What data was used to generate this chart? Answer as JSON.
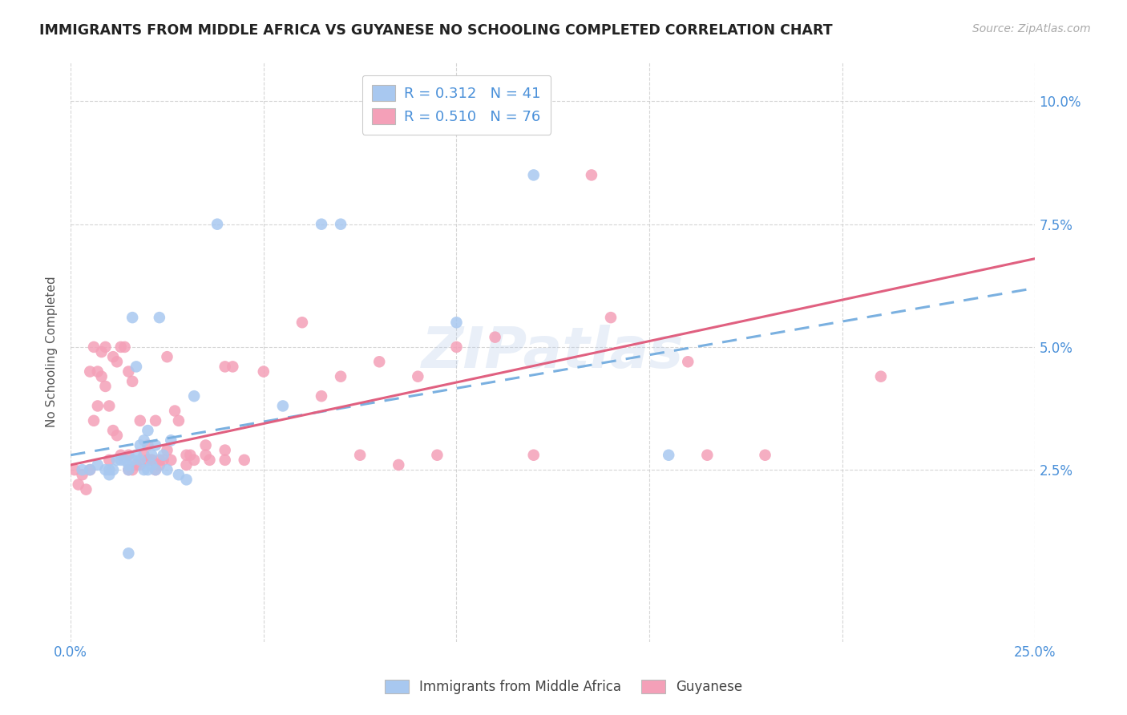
{
  "title": "IMMIGRANTS FROM MIDDLE AFRICA VS GUYANESE NO SCHOOLING COMPLETED CORRELATION CHART",
  "source": "Source: ZipAtlas.com",
  "ylabel": "No Schooling Completed",
  "xlim": [
    0.0,
    0.25
  ],
  "ylim": [
    -0.01,
    0.108
  ],
  "yticks": [
    0.025,
    0.05,
    0.075,
    0.1
  ],
  "yticklabels": [
    "2.5%",
    "5.0%",
    "7.5%",
    "10.0%"
  ],
  "xtick_positions": [
    0.0,
    0.05,
    0.1,
    0.15,
    0.2,
    0.25
  ],
  "xticklabels": [
    "0.0%",
    "",
    "",
    "",
    "",
    "25.0%"
  ],
  "legend1_r": "0.312",
  "legend1_n": "41",
  "legend2_r": "0.510",
  "legend2_n": "76",
  "color_blue": "#a8c8f0",
  "color_pink": "#f4a0b8",
  "color_blue_line": "#7ab0e0",
  "color_pink_line": "#e06080",
  "color_blue_text": "#4a90d9",
  "color_pink_text": "#e05878",
  "watermark": "ZIPatlas",
  "blue_line": [
    [
      0.0,
      0.25
    ],
    [
      0.028,
      0.062
    ]
  ],
  "pink_line": [
    [
      0.0,
      0.25
    ],
    [
      0.026,
      0.068
    ]
  ],
  "blue_scatter_x": [
    0.003,
    0.005,
    0.007,
    0.009,
    0.01,
    0.011,
    0.012,
    0.013,
    0.014,
    0.015,
    0.015,
    0.016,
    0.016,
    0.017,
    0.017,
    0.018,
    0.018,
    0.019,
    0.019,
    0.02,
    0.02,
    0.021,
    0.021,
    0.022,
    0.022,
    0.023,
    0.024,
    0.025,
    0.026,
    0.028,
    0.03,
    0.032,
    0.038,
    0.055,
    0.065,
    0.07,
    0.1,
    0.12,
    0.155,
    0.01,
    0.015
  ],
  "blue_scatter_y": [
    0.025,
    0.025,
    0.026,
    0.025,
    0.025,
    0.025,
    0.027,
    0.027,
    0.027,
    0.026,
    0.025,
    0.056,
    0.027,
    0.028,
    0.046,
    0.03,
    0.027,
    0.031,
    0.025,
    0.025,
    0.033,
    0.026,
    0.028,
    0.03,
    0.025,
    0.056,
    0.028,
    0.025,
    0.031,
    0.024,
    0.023,
    0.04,
    0.075,
    0.038,
    0.075,
    0.075,
    0.055,
    0.085,
    0.028,
    0.024,
    0.008
  ],
  "pink_scatter_x": [
    0.001,
    0.002,
    0.003,
    0.004,
    0.005,
    0.005,
    0.006,
    0.006,
    0.007,
    0.007,
    0.008,
    0.008,
    0.009,
    0.009,
    0.01,
    0.01,
    0.011,
    0.011,
    0.012,
    0.012,
    0.013,
    0.013,
    0.014,
    0.015,
    0.015,
    0.015,
    0.016,
    0.016,
    0.017,
    0.018,
    0.018,
    0.019,
    0.02,
    0.02,
    0.021,
    0.021,
    0.022,
    0.022,
    0.023,
    0.023,
    0.024,
    0.025,
    0.025,
    0.026,
    0.027,
    0.028,
    0.03,
    0.03,
    0.031,
    0.032,
    0.035,
    0.035,
    0.036,
    0.04,
    0.04,
    0.04,
    0.042,
    0.045,
    0.05,
    0.06,
    0.065,
    0.07,
    0.075,
    0.08,
    0.085,
    0.09,
    0.095,
    0.1,
    0.11,
    0.12,
    0.135,
    0.14,
    0.16,
    0.165,
    0.18,
    0.21
  ],
  "pink_scatter_y": [
    0.025,
    0.022,
    0.024,
    0.021,
    0.045,
    0.025,
    0.035,
    0.05,
    0.038,
    0.045,
    0.044,
    0.049,
    0.042,
    0.05,
    0.027,
    0.038,
    0.033,
    0.048,
    0.032,
    0.047,
    0.028,
    0.05,
    0.05,
    0.025,
    0.028,
    0.045,
    0.025,
    0.043,
    0.026,
    0.026,
    0.035,
    0.028,
    0.027,
    0.03,
    0.027,
    0.027,
    0.025,
    0.035,
    0.026,
    0.027,
    0.027,
    0.029,
    0.048,
    0.027,
    0.037,
    0.035,
    0.026,
    0.028,
    0.028,
    0.027,
    0.028,
    0.03,
    0.027,
    0.027,
    0.029,
    0.046,
    0.046,
    0.027,
    0.045,
    0.055,
    0.04,
    0.044,
    0.028,
    0.047,
    0.026,
    0.044,
    0.028,
    0.05,
    0.052,
    0.028,
    0.085,
    0.056,
    0.047,
    0.028,
    0.028,
    0.044
  ]
}
